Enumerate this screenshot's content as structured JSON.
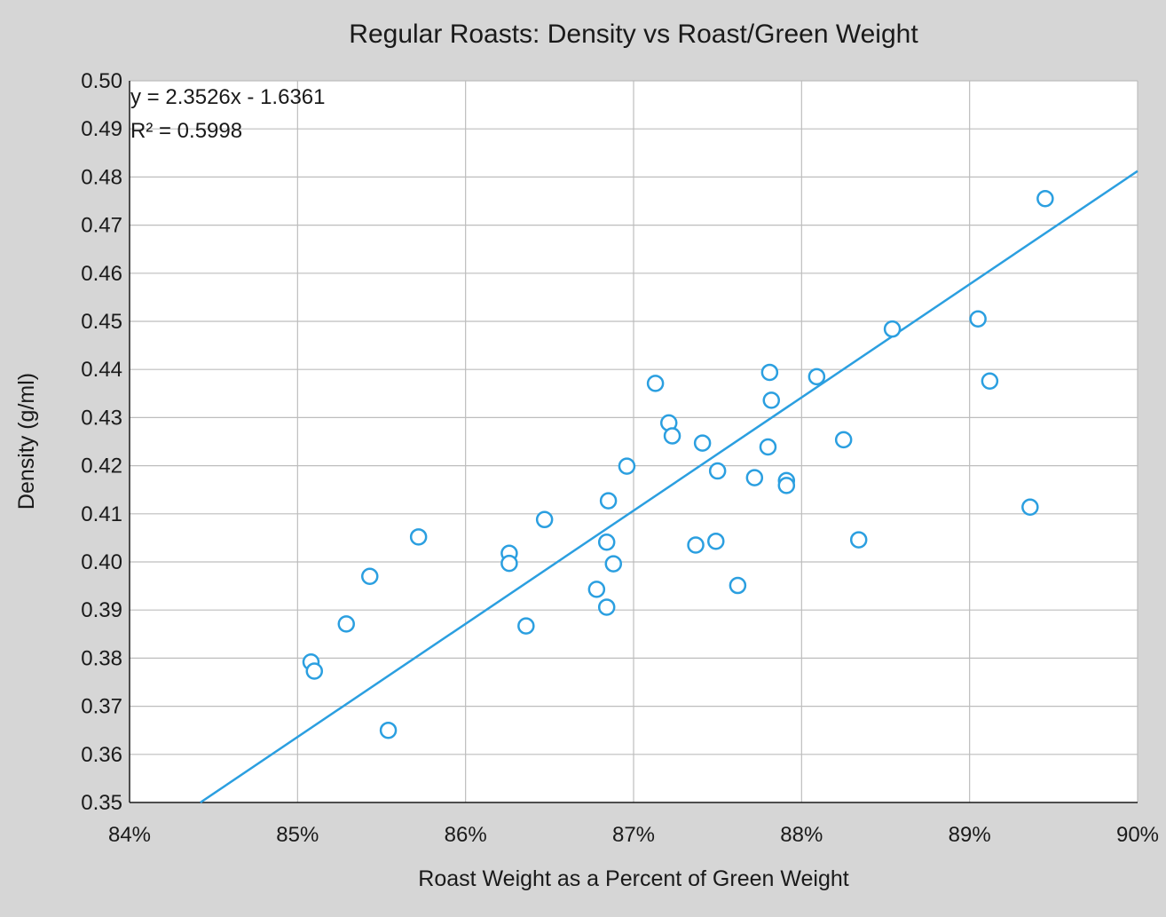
{
  "chart_data": {
    "type": "scatter",
    "title": "Regular Roasts: Density vs Roast/Green Weight",
    "xlabel": "Roast Weight as a Percent of Green Weight",
    "ylabel": "Density (g/ml)",
    "xlim": [
      0.84,
      0.9
    ],
    "ylim": [
      0.35,
      0.5
    ],
    "x_ticks": [
      0.84,
      0.85,
      0.86,
      0.87,
      0.88,
      0.89,
      0.9
    ],
    "x_tick_labels": [
      "84%",
      "85%",
      "86%",
      "87%",
      "88%",
      "89%",
      "90%"
    ],
    "y_ticks": [
      0.35,
      0.36,
      0.37,
      0.38,
      0.39,
      0.4,
      0.41,
      0.42,
      0.43,
      0.44,
      0.45,
      0.46,
      0.47,
      0.48,
      0.49,
      0.5
    ],
    "y_tick_labels": [
      "0.35",
      "0.36",
      "0.37",
      "0.38",
      "0.39",
      "0.40",
      "0.41",
      "0.42",
      "0.43",
      "0.44",
      "0.45",
      "0.46",
      "0.47",
      "0.48",
      "0.49",
      "0.50"
    ],
    "grid": true,
    "marker": "open-circle",
    "color": "#2b9fe0",
    "points": [
      {
        "x": 0.8508,
        "y": 0.3792
      },
      {
        "x": 0.851,
        "y": 0.3773
      },
      {
        "x": 0.8529,
        "y": 0.3871
      },
      {
        "x": 0.8543,
        "y": 0.397
      },
      {
        "x": 0.8554,
        "y": 0.365
      },
      {
        "x": 0.8572,
        "y": 0.4052
      },
      {
        "x": 0.8626,
        "y": 0.4018
      },
      {
        "x": 0.8626,
        "y": 0.3997
      },
      {
        "x": 0.8636,
        "y": 0.3867
      },
      {
        "x": 0.8647,
        "y": 0.4088
      },
      {
        "x": 0.8678,
        "y": 0.3943
      },
      {
        "x": 0.8684,
        "y": 0.4041
      },
      {
        "x": 0.8684,
        "y": 0.3906
      },
      {
        "x": 0.8685,
        "y": 0.4127
      },
      {
        "x": 0.8688,
        "y": 0.3996
      },
      {
        "x": 0.8696,
        "y": 0.4199
      },
      {
        "x": 0.8713,
        "y": 0.4371
      },
      {
        "x": 0.8721,
        "y": 0.4289
      },
      {
        "x": 0.8723,
        "y": 0.4262
      },
      {
        "x": 0.8737,
        "y": 0.4035
      },
      {
        "x": 0.8741,
        "y": 0.4247
      },
      {
        "x": 0.8749,
        "y": 0.4043
      },
      {
        "x": 0.875,
        "y": 0.4189
      },
      {
        "x": 0.8762,
        "y": 0.3951
      },
      {
        "x": 0.8772,
        "y": 0.4175
      },
      {
        "x": 0.878,
        "y": 0.4239
      },
      {
        "x": 0.8781,
        "y": 0.4394
      },
      {
        "x": 0.8782,
        "y": 0.4336
      },
      {
        "x": 0.8791,
        "y": 0.4169
      },
      {
        "x": 0.8791,
        "y": 0.4159
      },
      {
        "x": 0.8809,
        "y": 0.4385
      },
      {
        "x": 0.8825,
        "y": 0.4254
      },
      {
        "x": 0.8834,
        "y": 0.4046
      },
      {
        "x": 0.8854,
        "y": 0.4484
      },
      {
        "x": 0.8905,
        "y": 0.4505
      },
      {
        "x": 0.8912,
        "y": 0.4376
      },
      {
        "x": 0.8936,
        "y": 0.4114
      },
      {
        "x": 0.8945,
        "y": 0.4755
      }
    ],
    "trendline": {
      "type": "linear",
      "slope": 2.3526,
      "intercept": -1.6361,
      "equation_label": "y = 2.3526x - 1.6361",
      "r2_label": "R² = 0.5998"
    }
  }
}
